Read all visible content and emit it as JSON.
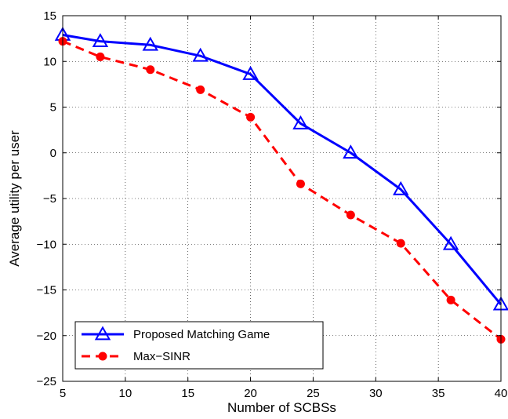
{
  "chart_data": {
    "type": "line",
    "title": "",
    "xlabel": "Number of SCBSs",
    "ylabel": "Average utility per user",
    "xlim": [
      5,
      40
    ],
    "ylim": [
      -25,
      15
    ],
    "xticks": [
      5,
      10,
      15,
      20,
      25,
      30,
      35,
      40
    ],
    "yticks": [
      -25,
      -20,
      -15,
      -10,
      -5,
      0,
      5,
      10,
      15
    ],
    "grid": true,
    "legend_position": "bottom-left",
    "series": [
      {
        "name": "Proposed Matching Game",
        "color": "#0000ff",
        "line_style": "solid",
        "marker": "triangle",
        "x": [
          5,
          8,
          12,
          16,
          20,
          24,
          28,
          32,
          36,
          40
        ],
        "y": [
          12.9,
          12.2,
          11.8,
          10.6,
          8.6,
          3.2,
          0.0,
          -4.0,
          -10.0,
          -16.6
        ]
      },
      {
        "name": "Max−SINR",
        "color": "#ff0000",
        "line_style": "dashed",
        "marker": "circle",
        "x": [
          5,
          8,
          12,
          16,
          20,
          24,
          28,
          32,
          36,
          40
        ],
        "y": [
          12.2,
          10.5,
          9.1,
          6.9,
          3.9,
          -3.4,
          -6.8,
          -9.9,
          -16.1,
          -20.4
        ]
      }
    ]
  }
}
